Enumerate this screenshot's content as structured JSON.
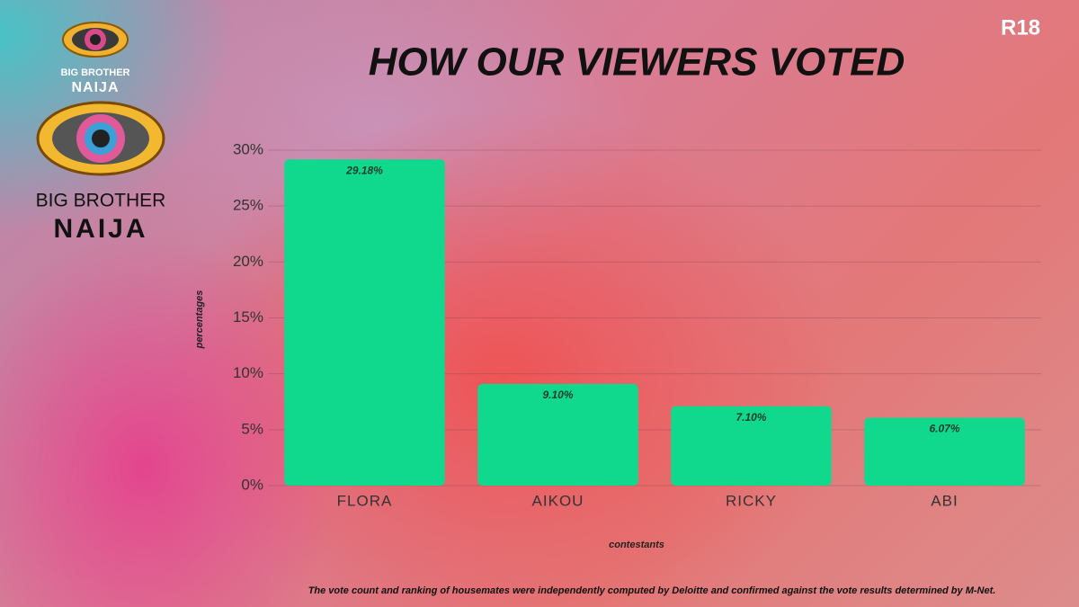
{
  "rating": "R18",
  "logos": [
    {
      "line1": "BIG BROTHER",
      "line2": "NAIJA"
    },
    {
      "line1": "BIG BROTHER",
      "line2": "NAIJA"
    }
  ],
  "footnote": "The vote count and ranking of housemates were independently computed by Deloitte and confirmed against the vote results determined by M-Net.",
  "chart_data": {
    "type": "bar",
    "title": "HOW OUR VIEWERS VOTED",
    "x_label": "contestants",
    "y_label": "percentages",
    "categories": [
      "FLORA",
      "AIKOU",
      "RICKY",
      "ABI"
    ],
    "values": [
      29.18,
      9.1,
      7.1,
      6.07
    ],
    "value_labels": [
      "29.18%",
      "9.10%",
      "7.10%",
      "6.07%"
    ],
    "color": "#10d98e",
    "ylim": [
      0,
      30
    ],
    "yticks": [
      {
        "value": 0,
        "label": "0%"
      },
      {
        "value": 5,
        "label": "5%"
      },
      {
        "value": 10,
        "label": "10%"
      },
      {
        "value": 15,
        "label": "15%"
      },
      {
        "value": 20,
        "label": "20%"
      },
      {
        "value": 25,
        "label": "25%"
      },
      {
        "value": 30,
        "label": "30%"
      }
    ],
    "grid": true
  }
}
